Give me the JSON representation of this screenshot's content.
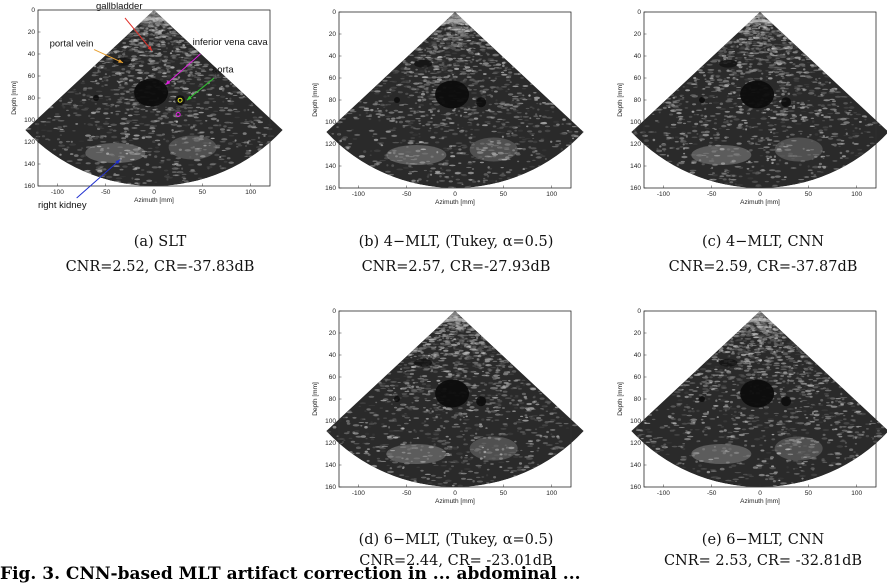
{
  "axes": {
    "xlabel": "Azimuth [mm]",
    "ylabel": "Depth [mm]",
    "xticks": [
      "-100",
      "-50",
      "0",
      "50",
      "100"
    ],
    "yticks": [
      "0",
      "20",
      "40",
      "60",
      "80",
      "100",
      "120",
      "140",
      "160"
    ]
  },
  "panels": [
    {
      "caption": "(a) SLT",
      "metrics": "CNR=2.52, CR=-37.83dB"
    },
    {
      "caption": "(b) 4−MLT, (Tukey, α=0.5)",
      "metrics": "CNR=2.57, CR=-27.93dB"
    },
    {
      "caption": "(c) 4−MLT, CNN",
      "metrics": "CNR=2.59, CR=-37.87dB"
    },
    {
      "caption": "(d) 6−MLT, (Tukey, α=0.5)",
      "metrics": "CNR=2.44, CR= -23.01dB"
    },
    {
      "caption": "(e) 6−MLT, CNN",
      "metrics": "CNR= 2.53, CR= -32.81dB"
    }
  ],
  "annotations": {
    "gallbladder": "gallbladder",
    "portal_vein": "portal vein",
    "ivc": "inferior vena cava",
    "aorta": "aorta",
    "right_kidney": "right kidney",
    "colors": {
      "gallbladder": "#e0302a",
      "portal_vein": "#e8a030",
      "ivc": "#e020e0",
      "aorta": "#30c030",
      "right_kidney": "#2030d0"
    }
  },
  "footer": "Fig. 3. CNN-based MLT artifact correction in ...  abdominal ..."
}
